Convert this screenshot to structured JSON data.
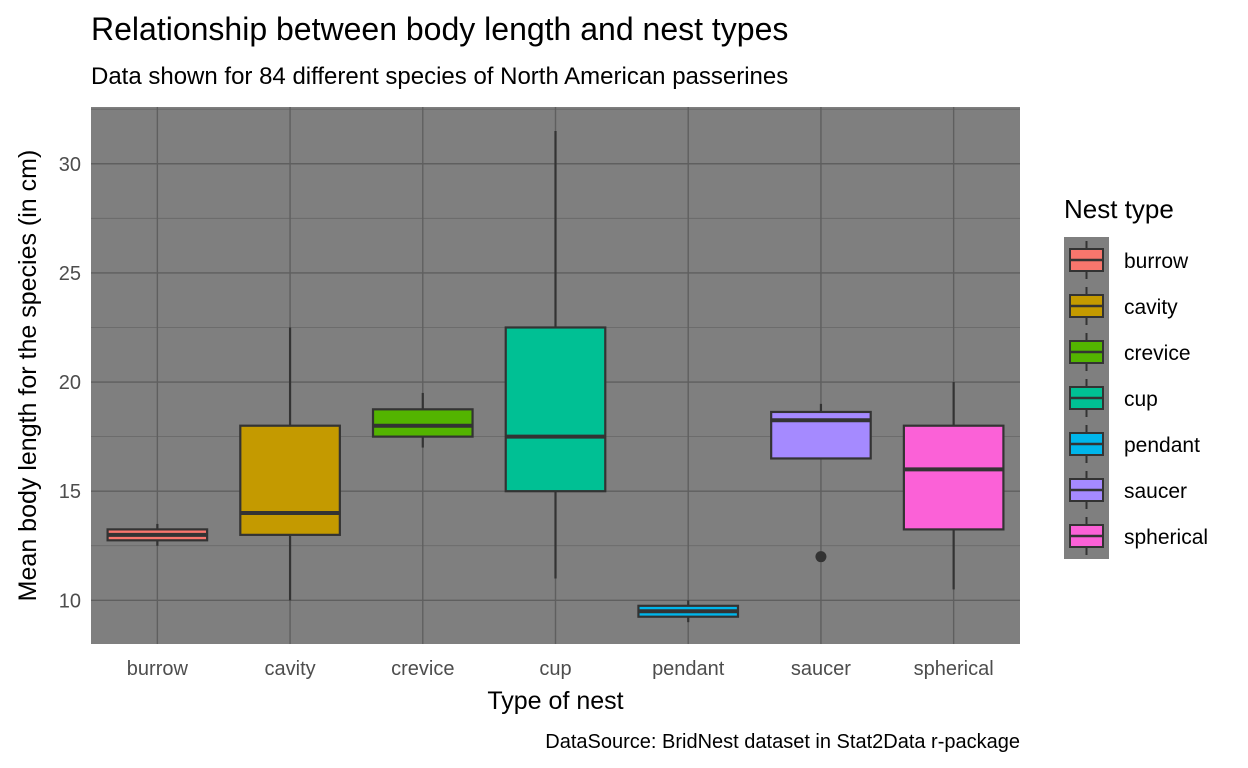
{
  "chart_data": {
    "type": "boxplot",
    "title": "Relationship between body length and nest types",
    "subtitle": "Data shown for 84 different species of North American passerines",
    "xlabel": "Type of nest",
    "ylabel": "Mean body length for the species (in cm)",
    "caption": "DataSource: BridNest dataset in Stat2Data r-package",
    "ylim": [
      8.0,
      32.6
    ],
    "yticks": [
      "10",
      "15",
      "20",
      "25",
      "30"
    ],
    "grid": true,
    "panel_background": "#7f7f7f",
    "legend": {
      "title": "Nest type",
      "position": "right"
    },
    "categories": [
      "burrow",
      "cavity",
      "crevice",
      "cup",
      "pendant",
      "saucer",
      "spherical"
    ],
    "series": [
      {
        "name": "burrow",
        "color": "#F8766D",
        "whisker_low": 12.5,
        "q1": 12.75,
        "median": 13.0,
        "q3": 13.25,
        "whisker_high": 13.5,
        "outliers": []
      },
      {
        "name": "cavity",
        "color": "#C49A00",
        "whisker_low": 10.0,
        "q1": 13.0,
        "median": 14.0,
        "q3": 18.0,
        "whisker_high": 22.5,
        "outliers": []
      },
      {
        "name": "crevice",
        "color": "#53B400",
        "whisker_low": 17.0,
        "q1": 17.5,
        "median": 18.0,
        "q3": 18.75,
        "whisker_high": 19.5,
        "outliers": []
      },
      {
        "name": "cup",
        "color": "#00C094",
        "whisker_low": 11.0,
        "q1": 15.0,
        "median": 17.5,
        "q3": 22.5,
        "whisker_high": 31.5,
        "outliers": []
      },
      {
        "name": "pendant",
        "color": "#00B6EB",
        "whisker_low": 9.0,
        "q1": 9.25,
        "median": 9.5,
        "q3": 9.75,
        "whisker_high": 10.0,
        "outliers": []
      },
      {
        "name": "saucer",
        "color": "#A58AFF",
        "whisker_low": 16.5,
        "q1": 16.5,
        "median": 18.25,
        "q3": 18.63,
        "whisker_high": 19.0,
        "outliers": [
          12.0
        ]
      },
      {
        "name": "spherical",
        "color": "#FB61D7",
        "whisker_low": 10.5,
        "q1": 13.25,
        "median": 16.0,
        "q3": 18.0,
        "whisker_high": 20.0,
        "outliers": []
      }
    ]
  }
}
